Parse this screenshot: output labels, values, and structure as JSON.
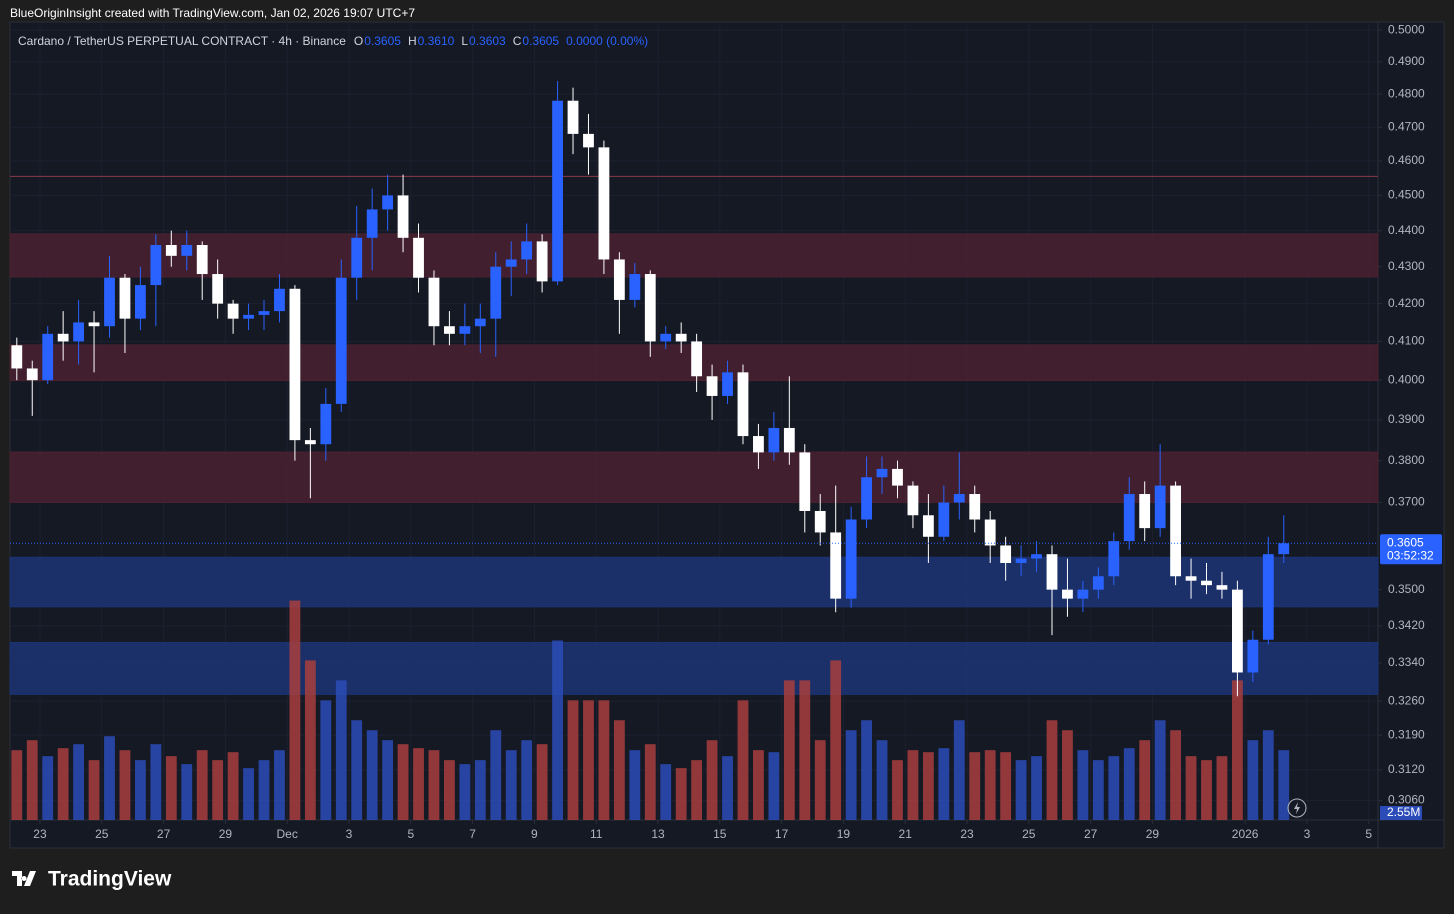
{
  "header": {
    "credit": "BlueOriginInsight created with TradingView.com, Jan 02, 2026 19:07 UTC+7",
    "brand": "TradingView"
  },
  "chart_data": {
    "type": "candlestick",
    "symbol": "Cardano / TetherUS PERPETUAL CONTRACT · 4h · Binance",
    "ohlc": [
      {
        "name": "O",
        "value": 0.3605,
        "label": "0.3605"
      },
      {
        "name": "H",
        "value": 0.361,
        "label": "0.3610"
      },
      {
        "name": "L",
        "value": 0.3603,
        "label": "0.3603"
      },
      {
        "name": "C",
        "value": 0.3605,
        "label": "0.3605"
      }
    ],
    "change": "0.0000 (0.00%)",
    "last_price": {
      "value": 0.3605,
      "label": "0.3605"
    },
    "countdown": "03:52:32",
    "volume_label": "2.55M",
    "up_color": "#2962ff",
    "down_color": "#ffffff",
    "volume_up_color": "#2b4cb8",
    "volume_down_color": "#a83e3e",
    "log_scale": true,
    "grid": true,
    "ylim": [
      0.3022,
      0.5026
    ],
    "yticks": [
      {
        "value": 0.5,
        "label": "0.5000"
      },
      {
        "value": 0.49,
        "label": "0.4900"
      },
      {
        "value": 0.48,
        "label": "0.4800"
      },
      {
        "value": 0.47,
        "label": "0.4700"
      },
      {
        "value": 0.46,
        "label": "0.4600"
      },
      {
        "value": 0.45,
        "label": "0.4500"
      },
      {
        "value": 0.44,
        "label": "0.4400"
      },
      {
        "value": 0.43,
        "label": "0.4300"
      },
      {
        "value": 0.42,
        "label": "0.4200"
      },
      {
        "value": 0.41,
        "label": "0.4100"
      },
      {
        "value": 0.4,
        "label": "0.4000"
      },
      {
        "value": 0.39,
        "label": "0.3900"
      },
      {
        "value": 0.38,
        "label": "0.3800"
      },
      {
        "value": 0.37,
        "label": "0.3700"
      },
      {
        "value": 0.35,
        "label": "0.3500"
      },
      {
        "value": 0.342,
        "label": "0.3420"
      },
      {
        "value": 0.334,
        "label": "0.3340"
      },
      {
        "value": 0.326,
        "label": "0.3260"
      },
      {
        "value": 0.319,
        "label": "0.3190"
      },
      {
        "value": 0.312,
        "label": "0.3120"
      },
      {
        "value": 0.306,
        "label": "0.3060"
      }
    ],
    "xlim": [
      22.03,
      66.3
    ],
    "xticks": [
      23,
      25,
      27,
      29,
      {
        "value": 31,
        "label": "Dec"
      },
      {
        "value": 33,
        "label": "3"
      },
      {
        "value": 35,
        "label": "5"
      },
      {
        "value": 37,
        "label": "7"
      },
      {
        "value": 39,
        "label": "9"
      },
      {
        "value": 41,
        "label": "11"
      },
      {
        "value": 43,
        "label": "13"
      },
      {
        "value": 45,
        "label": "15"
      },
      {
        "value": 47,
        "label": "17"
      },
      {
        "value": 49,
        "label": "19"
      },
      {
        "value": 51,
        "label": "21"
      },
      {
        "value": 53,
        "label": "23"
      },
      {
        "value": 55,
        "label": "25"
      },
      {
        "value": 57,
        "label": "27"
      },
      {
        "value": 59,
        "label": "29"
      },
      {
        "value": 62,
        "label": "2026"
      },
      {
        "value": 64,
        "label": "3"
      },
      {
        "value": 66,
        "label": "5"
      }
    ],
    "y2lim": [
      0,
      40
    ],
    "zones": [
      {
        "low": 0.4272,
        "high": 0.4391,
        "color": "#4a2130"
      },
      {
        "low": 0.3999,
        "high": 0.4091,
        "color": "#4a2130"
      },
      {
        "low": 0.37,
        "high": 0.3821,
        "color": "#4a2130"
      },
      {
        "low": 0.3462,
        "high": 0.3573,
        "color": "#1c3475"
      },
      {
        "low": 0.3274,
        "high": 0.3384,
        "color": "#1c3475"
      }
    ],
    "level": {
      "value": 0.4555,
      "color": "#8a3a48"
    },
    "x": [
      22.25,
      22.75,
      23.25,
      23.75,
      24.25,
      24.75,
      25.25,
      25.75,
      26.25,
      26.75,
      27.25,
      27.75,
      28.25,
      28.75,
      29.25,
      29.75,
      30.25,
      30.75,
      31.25,
      31.75,
      32.25,
      32.75,
      33.25,
      33.75,
      34.25,
      34.75,
      35.25,
      35.75,
      36.25,
      36.75,
      37.25,
      37.75,
      38.25,
      38.75,
      39.25,
      39.75,
      40.25,
      40.75,
      41.25,
      41.75,
      42.25,
      42.75,
      43.25,
      43.75,
      44.25,
      44.75,
      45.25,
      45.75,
      46.25,
      46.75,
      47.25,
      47.75,
      48.25,
      48.75,
      49.25,
      49.75,
      50.25,
      50.75,
      51.25,
      51.75,
      52.25,
      52.75,
      53.25,
      53.75,
      54.25,
      54.75,
      55.25,
      55.75,
      56.25,
      56.75,
      57.25,
      57.75,
      58.25,
      58.75,
      59.25,
      59.75,
      60.25,
      60.75,
      61.25,
      61.75,
      62.25,
      62.75,
      63.25
    ],
    "open": [
      0.409,
      0.403,
      0.4,
      0.412,
      0.41,
      0.415,
      0.414,
      0.427,
      0.416,
      0.425,
      0.436,
      0.433,
      0.436,
      0.428,
      0.42,
      0.416,
      0.417,
      0.418,
      0.424,
      0.385,
      0.384,
      0.394,
      0.427,
      0.438,
      0.446,
      0.45,
      0.438,
      0.427,
      0.414,
      0.412,
      0.414,
      0.416,
      0.43,
      0.432,
      0.437,
      0.426,
      0.478,
      0.468,
      0.464,
      0.432,
      0.421,
      0.428,
      0.41,
      0.412,
      0.41,
      0.401,
      0.396,
      0.402,
      0.386,
      0.382,
      0.388,
      0.382,
      0.368,
      0.363,
      0.348,
      0.366,
      0.376,
      0.378,
      0.374,
      0.367,
      0.362,
      0.37,
      0.372,
      0.366,
      0.36,
      0.356,
      0.357,
      0.358,
      0.35,
      0.348,
      0.35,
      0.353,
      0.361,
      0.372,
      0.364,
      0.374,
      0.353,
      0.352,
      0.351,
      0.35,
      0.332,
      0.339,
      0.358
    ],
    "high": [
      0.411,
      0.405,
      0.414,
      0.418,
      0.421,
      0.418,
      0.433,
      0.428,
      0.43,
      0.439,
      0.44,
      0.44,
      0.437,
      0.432,
      0.421,
      0.42,
      0.421,
      0.428,
      0.425,
      0.388,
      0.398,
      0.432,
      0.447,
      0.452,
      0.456,
      0.456,
      0.442,
      0.429,
      0.418,
      0.42,
      0.42,
      0.434,
      0.437,
      0.442,
      0.439,
      0.484,
      0.482,
      0.474,
      0.466,
      0.434,
      0.431,
      0.429,
      0.414,
      0.415,
      0.412,
      0.404,
      0.405,
      0.404,
      0.389,
      0.392,
      0.401,
      0.384,
      0.372,
      0.374,
      0.369,
      0.381,
      0.381,
      0.38,
      0.375,
      0.372,
      0.374,
      0.382,
      0.374,
      0.368,
      0.362,
      0.36,
      0.361,
      0.36,
      0.357,
      0.352,
      0.355,
      0.363,
      0.376,
      0.375,
      0.384,
      0.375,
      0.357,
      0.356,
      0.354,
      0.352,
      0.341,
      0.362,
      0.367
    ],
    "low": [
      0.4,
      0.391,
      0.399,
      0.405,
      0.404,
      0.402,
      0.411,
      0.407,
      0.413,
      0.414,
      0.43,
      0.429,
      0.421,
      0.416,
      0.412,
      0.413,
      0.413,
      0.415,
      0.38,
      0.371,
      0.38,
      0.392,
      0.421,
      0.429,
      0.44,
      0.434,
      0.423,
      0.409,
      0.409,
      0.409,
      0.407,
      0.406,
      0.422,
      0.428,
      0.423,
      0.425,
      0.462,
      0.456,
      0.428,
      0.412,
      0.419,
      0.406,
      0.408,
      0.407,
      0.397,
      0.39,
      0.394,
      0.384,
      0.378,
      0.38,
      0.379,
      0.363,
      0.36,
      0.345,
      0.346,
      0.364,
      0.372,
      0.371,
      0.364,
      0.356,
      0.361,
      0.366,
      0.363,
      0.356,
      0.352,
      0.353,
      0.354,
      0.34,
      0.344,
      0.345,
      0.348,
      0.351,
      0.359,
      0.361,
      0.362,
      0.351,
      0.348,
      0.349,
      0.348,
      0.327,
      0.33,
      0.338,
      0.356
    ],
    "close": [
      0.403,
      0.4,
      0.412,
      0.41,
      0.415,
      0.414,
      0.427,
      0.416,
      0.425,
      0.436,
      0.433,
      0.436,
      0.428,
      0.42,
      0.416,
      0.417,
      0.418,
      0.424,
      0.385,
      0.384,
      0.394,
      0.427,
      0.438,
      0.446,
      0.45,
      0.438,
      0.427,
      0.414,
      0.412,
      0.414,
      0.416,
      0.43,
      0.432,
      0.437,
      0.426,
      0.478,
      0.468,
      0.464,
      0.432,
      0.421,
      0.428,
      0.41,
      0.412,
      0.41,
      0.401,
      0.396,
      0.402,
      0.386,
      0.382,
      0.388,
      0.382,
      0.368,
      0.363,
      0.348,
      0.366,
      0.376,
      0.378,
      0.374,
      0.367,
      0.362,
      0.37,
      0.372,
      0.366,
      0.36,
      0.356,
      0.357,
      0.358,
      0.35,
      0.348,
      0.35,
      0.353,
      0.361,
      0.372,
      0.364,
      0.374,
      0.353,
      0.352,
      0.351,
      0.35,
      0.332,
      0.339,
      0.358,
      0.3605
    ],
    "volume": [
      3.5,
      4,
      3.2,
      3.6,
      3.8,
      3,
      4.2,
      3.5,
      3,
      3.8,
      3.2,
      2.8,
      3.5,
      3,
      3.4,
      2.6,
      3,
      3.5,
      11,
      8,
      6,
      7,
      5,
      4.5,
      4,
      3.8,
      3.6,
      3.5,
      3,
      2.8,
      3,
      4.5,
      3.5,
      4,
      3.8,
      9,
      6,
      6,
      6,
      5,
      3.5,
      3.8,
      2.8,
      2.6,
      3,
      4,
      3.2,
      6,
      3.5,
      3.4,
      7,
      7,
      4,
      8,
      4.5,
      5,
      4,
      3,
      3.5,
      3.4,
      3.6,
      5,
      3.4,
      3.5,
      3.4,
      3,
      3.2,
      5,
      4.5,
      3.5,
      3,
      3.2,
      3.6,
      4,
      5,
      4.5,
      3.2,
      3,
      3.2,
      7,
      4,
      4.5,
      3.5
    ]
  }
}
